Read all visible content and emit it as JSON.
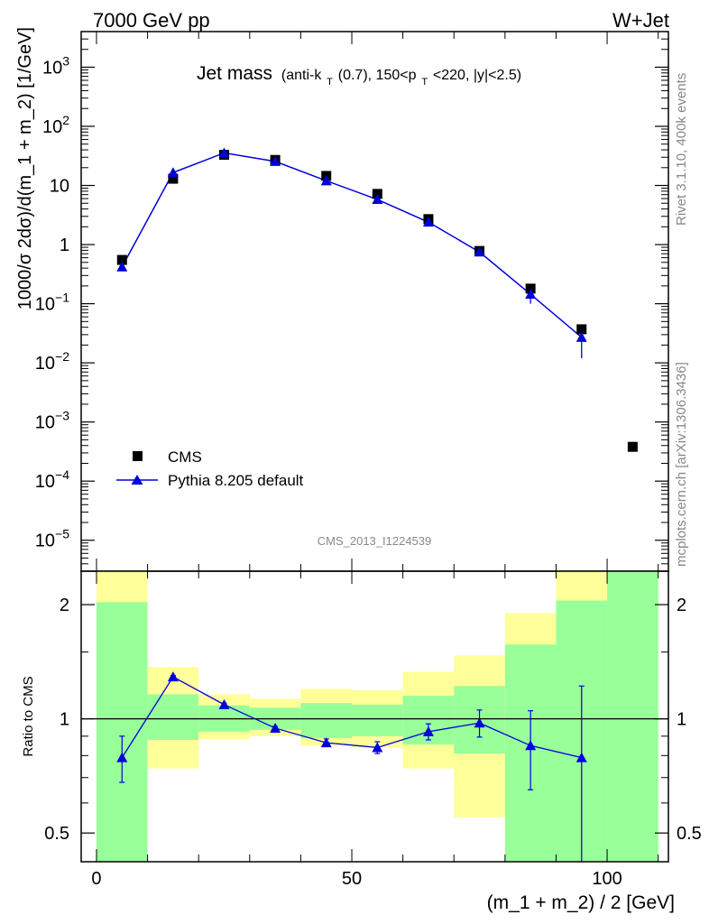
{
  "header": {
    "left_label": "7000 GeV pp",
    "right_label": "W+Jet"
  },
  "side": {
    "rivet_label": "Rivet 3.1.10,  400k events",
    "mcplots_label": "mcplots.cern.ch [arXiv:1306.3436]"
  },
  "watermark": "CMS_2013_I1224539",
  "chart_data": [
    {
      "type": "scatter",
      "panel": "main",
      "title": {
        "main": "Jet mass",
        "pieces": [
          "(anti-k",
          "T",
          "(0.7), 150<p",
          "T",
          "<220, |y|<2.5)"
        ]
      },
      "ylabel": "1000/σ 2dσ)/d(m_1 + m_2) [1/GeV]",
      "yscale": "log",
      "ylim": [
        3e-06,
        4000
      ],
      "xlim": [
        -3,
        112
      ],
      "yticks": [
        {
          "value": 1e-05,
          "base": "10",
          "exp": "−5"
        },
        {
          "value": 0.0001,
          "base": "10",
          "exp": "−4"
        },
        {
          "value": 0.001,
          "base": "10",
          "exp": "−3"
        },
        {
          "value": 0.01,
          "base": "10",
          "exp": "−2"
        },
        {
          "value": 0.1,
          "base": "10",
          "exp": "−1"
        },
        {
          "value": 1,
          "base": "1",
          "exp": ""
        },
        {
          "value": 10,
          "base": "10",
          "exp": ""
        },
        {
          "value": 100,
          "base": "10",
          "exp": "2"
        },
        {
          "value": 1000,
          "base": "10",
          "exp": "3"
        }
      ],
      "legend": {
        "position": "bottom-left",
        "entries": [
          "CMS",
          "Pythia 8.205 default"
        ]
      },
      "series": [
        {
          "name": "CMS",
          "marker": "square",
          "color": "#000000",
          "x": [
            5,
            15,
            25,
            35,
            45,
            55,
            65,
            75,
            85,
            95,
            105
          ],
          "y": [
            0.55,
            13,
            33,
            27,
            14.5,
            7.2,
            2.7,
            0.78,
            0.18,
            0.037,
            0.00038
          ]
        },
        {
          "name": "Pythia 8.205 default",
          "marker": "triangle",
          "color": "#0000dd",
          "x": [
            5,
            15,
            25,
            35,
            45,
            55,
            65,
            75,
            85,
            95
          ],
          "y": [
            0.42,
            16.5,
            35.5,
            25.5,
            12,
            5.8,
            2.4,
            0.75,
            0.145,
            0.027
          ],
          "yerr_low": [
            0.06,
            0.3,
            0.6,
            0.5,
            0.3,
            0.15,
            0.1,
            0.05,
            0.045,
            0.015
          ],
          "yerr_high": [
            0.06,
            0.3,
            0.6,
            0.5,
            0.3,
            0.15,
            0.1,
            0.05,
            0.045,
            0.015
          ]
        }
      ]
    },
    {
      "type": "scatter",
      "panel": "ratio",
      "ylabel": "Ratio to CMS",
      "xlabel": "(m_1 + m_2) / 2 [GeV]",
      "yscale": "log",
      "ylim": [
        0.42,
        2.45
      ],
      "xlim": [
        -3,
        112
      ],
      "yticks": [
        0.5,
        1,
        2
      ],
      "ytick_labels": [
        "0.5",
        "1",
        "2"
      ],
      "xticks": [
        0,
        50,
        100
      ],
      "xtick_labels": [
        "0",
        "50",
        "100"
      ],
      "reference_line": 1,
      "bands": [
        {
          "x0": 0,
          "x1": 10,
          "green": [
            0.3,
            2.03
          ],
          "yellow": [
            0.3,
            2.6
          ]
        },
        {
          "x0": 10,
          "x1": 20,
          "green": [
            0.88,
            1.16
          ],
          "yellow": [
            0.74,
            1.37
          ]
        },
        {
          "x0": 20,
          "x1": 30,
          "green": [
            0.925,
            1.085
          ],
          "yellow": [
            0.885,
            1.16
          ]
        },
        {
          "x0": 30,
          "x1": 40,
          "green": [
            0.935,
            1.07
          ],
          "yellow": [
            0.9,
            1.13
          ]
        },
        {
          "x0": 40,
          "x1": 50,
          "green": [
            0.89,
            1.1
          ],
          "yellow": [
            0.85,
            1.2
          ]
        },
        {
          "x0": 50,
          "x1": 60,
          "green": [
            0.9,
            1.09
          ],
          "yellow": [
            0.84,
            1.19
          ]
        },
        {
          "x0": 60,
          "x1": 70,
          "green": [
            0.855,
            1.15
          ],
          "yellow": [
            0.74,
            1.33
          ]
        },
        {
          "x0": 70,
          "x1": 80,
          "green": [
            0.81,
            1.22
          ],
          "yellow": [
            0.55,
            1.47
          ]
        },
        {
          "x0": 80,
          "x1": 90,
          "green": [
            0.3,
            1.57
          ],
          "yellow": [
            0.3,
            1.9
          ]
        },
        {
          "x0": 90,
          "x1": 100,
          "green": [
            0.3,
            2.05
          ],
          "yellow": [
            0.3,
            2.6
          ]
        },
        {
          "x0": 100,
          "x1": 110,
          "green": [
            0.3,
            2.6
          ],
          "yellow": [
            0.3,
            2.6
          ]
        }
      ],
      "series": [
        {
          "name": "Pythia 8.205 default / CMS",
          "marker": "triangle",
          "color": "#0000dd",
          "x": [
            5,
            15,
            25,
            35,
            45,
            55,
            65,
            75,
            85,
            95
          ],
          "y": [
            0.79,
            1.29,
            1.09,
            0.945,
            0.865,
            0.84,
            0.925,
            0.975,
            0.85,
            0.79
          ],
          "yerr_low": [
            0.11,
            0.01,
            0.01,
            0.01,
            0.02,
            0.03,
            0.045,
            0.08,
            0.2,
            0.4
          ],
          "yerr_high": [
            0.11,
            0.01,
            0.01,
            0.01,
            0.02,
            0.03,
            0.045,
            0.08,
            0.2,
            0.43
          ]
        }
      ]
    }
  ],
  "colors": {
    "cms": "#000000",
    "pythia": "#0000dd",
    "band_green": "#99ff99",
    "band_yellow": "#ffff99",
    "side_text": "#888888"
  }
}
